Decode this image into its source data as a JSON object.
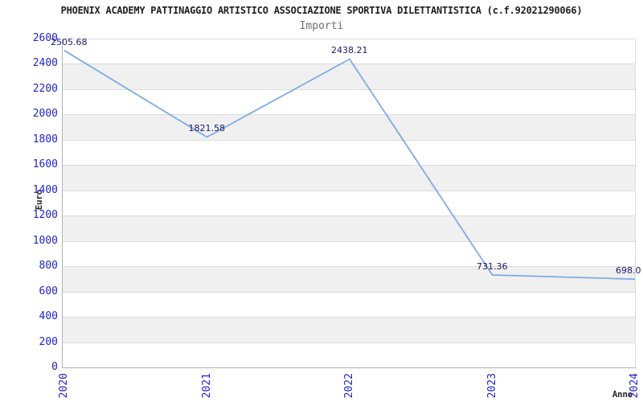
{
  "chart_data": {
    "type": "line",
    "title": "PHOENIX ACADEMY PATTINAGGIO ARTISTICO ASSOCIAZIONE SPORTIVA DILETTANTISTICA (c.f.92021290066)",
    "subtitle": "Importi",
    "xlabel": "Anno",
    "ylabel": "Euro",
    "categories": [
      "2020",
      "2021",
      "2022",
      "2023",
      "2024"
    ],
    "series": [
      {
        "name": "Importi",
        "values": [
          2505.68,
          1821.58,
          2438.21,
          731.36,
          698.0
        ],
        "point_labels": [
          "2505.68",
          "1821.58",
          "2438.21",
          "731.36",
          "698.0"
        ]
      }
    ],
    "ylim": [
      0,
      2600
    ],
    "ytick_step": 200,
    "yticks": [
      0,
      200,
      400,
      600,
      800,
      1000,
      1200,
      1400,
      1600,
      1800,
      2000,
      2200,
      2400,
      2600
    ],
    "grid": "horizontal",
    "alternating_bands": true,
    "legend": "none",
    "colors": {
      "line": "#7dace4",
      "tick_text": "#2222cc",
      "point_label_text": "#191970",
      "band": "#f0f0f0",
      "gridline": "#dcdcdc",
      "axis_line": "#b3b3b3",
      "right_edge": "#dcdcdc",
      "title_text": "#1f1f1f",
      "subtitle_text": "#6f6f6f",
      "axis_title_text": "#2b2b2b"
    }
  }
}
